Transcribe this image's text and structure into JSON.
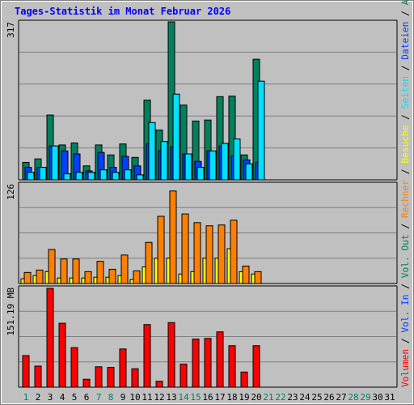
{
  "chart_data": {
    "type": "bar",
    "title": "Tages-Statistik im Monat Februar 2026",
    "days": [
      "1",
      "2",
      "3",
      "4",
      "5",
      "6",
      "7",
      "8",
      "9",
      "10",
      "11",
      "12",
      "13",
      "14",
      "15",
      "16",
      "17",
      "18",
      "19",
      "20",
      "21",
      "22",
      "23",
      "24",
      "25",
      "26",
      "27",
      "28",
      "29",
      "30",
      "31"
    ],
    "weekend_days": [
      "1",
      "7",
      "8",
      "14",
      "15",
      "21",
      "22",
      "28",
      "29"
    ],
    "colors": {
      "background": "#c0c0c0",
      "text": "#000000",
      "title": "#0000ff",
      "weekday_label": "#000000",
      "weekend_label": "#00805c",
      "anfragen": "#00805c",
      "dateien": "#0040ff",
      "seiten": "#00e0ff",
      "besuche": "#ffff00",
      "rechner": "#ff8000",
      "volumen": "#ff0000",
      "grid": "#808080"
    },
    "panels": [
      {
        "id": "hits",
        "max_label": "317",
        "ymax": 317,
        "series": [
          {
            "name": "Anfragen",
            "color": "#00805c",
            "values": [
              35,
              42,
              130,
              70,
              74,
              28,
              70,
              50,
              72,
              45,
              160,
              100,
              317,
              150,
              118,
              120,
              167,
              168,
              50,
              242
            ]
          },
          {
            "name": "Dateien",
            "color": "#0040ff",
            "values": [
              25,
              25,
              68,
              58,
              52,
              18,
              55,
              25,
              47,
              28,
              72,
              58,
              66,
              52,
              37,
              58,
              68,
              48,
              40,
              35
            ]
          },
          {
            "name": "Seiten",
            "color": "#00e0ff",
            "values": [
              15,
              25,
              68,
              12,
              15,
              15,
              20,
              15,
              20,
              10,
              115,
              77,
              172,
              52,
              25,
              58,
              73,
              82,
              32,
              198
            ]
          }
        ]
      },
      {
        "id": "visits",
        "max_label": "126",
        "ymax": 126,
        "series": [
          {
            "name": "Besuche",
            "color": "#ffff00",
            "values": [
              6,
              10,
              15,
              7,
              7,
              7,
              8,
              8,
              10,
              5,
              21,
              32,
              32,
              12,
              15,
              32,
              32,
              44,
              15,
              12
            ]
          },
          {
            "name": "Rechner",
            "color": "#ff8000",
            "values": [
              14,
              17,
              43,
              31,
              31,
              15,
              28,
              18,
              36,
              16,
              52,
              85,
              117,
              88,
              77,
              73,
              74,
              80,
              22,
              15
            ]
          }
        ]
      },
      {
        "id": "volume",
        "max_label": "151.19 MB",
        "ymax": 151.19,
        "series": [
          {
            "name": "Volumen",
            "color": "#ff0000",
            "values": [
              48,
              32,
              150,
              97,
              60,
              12,
              31,
              30,
              58,
              28,
              95,
              9,
              98,
              35,
              73,
              74,
              84,
              63,
              23,
              63
            ]
          }
        ]
      }
    ],
    "right_axis_labels": [
      {
        "text": "Anfragen",
        "color": "#00805c"
      },
      {
        "text": "Dateien",
        "color": "#0040ff"
      },
      {
        "text": "Seiten",
        "color": "#00e0ff"
      },
      {
        "text": "Besuche",
        "color": "#ffff00"
      },
      {
        "text": "Rechner",
        "color": "#ff8000"
      },
      {
        "text": "Vol. Out",
        "color": "#00805c"
      },
      {
        "text": "Vol. In",
        "color": "#0040ff"
      },
      {
        "text": "Volumen",
        "color": "#ff0000"
      }
    ],
    "separator": "/",
    "legend_placement": "right-vertical",
    "grid": true
  }
}
